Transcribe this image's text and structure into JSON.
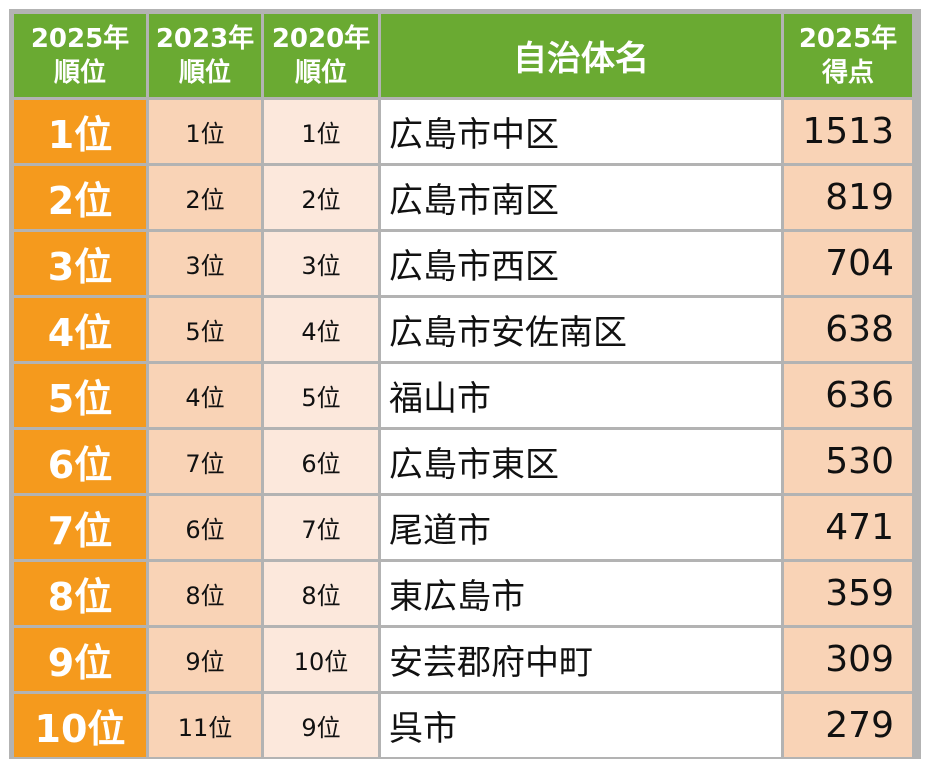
{
  "headers": {
    "rank2025": [
      "2025年",
      "順位"
    ],
    "rank2023": [
      "2023年",
      "順位"
    ],
    "rank2020": [
      "2020年",
      "順位"
    ],
    "name": "自治体名",
    "score2025": [
      "2025年",
      "得点"
    ]
  },
  "rows": [
    {
      "rank2025": "1位",
      "rank2023": "1位",
      "rank2020": "1位",
      "name": "広島市中区",
      "score": "1513"
    },
    {
      "rank2025": "2位",
      "rank2023": "2位",
      "rank2020": "2位",
      "name": "広島市南区",
      "score": "819"
    },
    {
      "rank2025": "3位",
      "rank2023": "3位",
      "rank2020": "3位",
      "name": "広島市西区",
      "score": "704"
    },
    {
      "rank2025": "4位",
      "rank2023": "5位",
      "rank2020": "4位",
      "name": "広島市安佐南区",
      "score": "638"
    },
    {
      "rank2025": "5位",
      "rank2023": "4位",
      "rank2020": "5位",
      "name": "福山市",
      "score": "636"
    },
    {
      "rank2025": "6位",
      "rank2023": "7位",
      "rank2020": "6位",
      "name": "広島市東区",
      "score": "530"
    },
    {
      "rank2025": "7位",
      "rank2023": "6位",
      "rank2020": "7位",
      "name": "尾道市",
      "score": "471"
    },
    {
      "rank2025": "8位",
      "rank2023": "8位",
      "rank2020": "8位",
      "name": "東広島市",
      "score": "359"
    },
    {
      "rank2025": "9位",
      "rank2023": "9位",
      "rank2020": "10位",
      "name": "安芸郡府中町",
      "score": "309"
    },
    {
      "rank2025": "10位",
      "rank2023": "11位",
      "rank2020": "9位",
      "name": "呉市",
      "score": "279"
    }
  ],
  "colors": {
    "header_green": "#6aaa32",
    "rank_orange": "#f59a1d",
    "light_peach": "#f9d3b6",
    "lighter_peach": "#fce8dc",
    "border_gray": "#b3b3b3"
  }
}
